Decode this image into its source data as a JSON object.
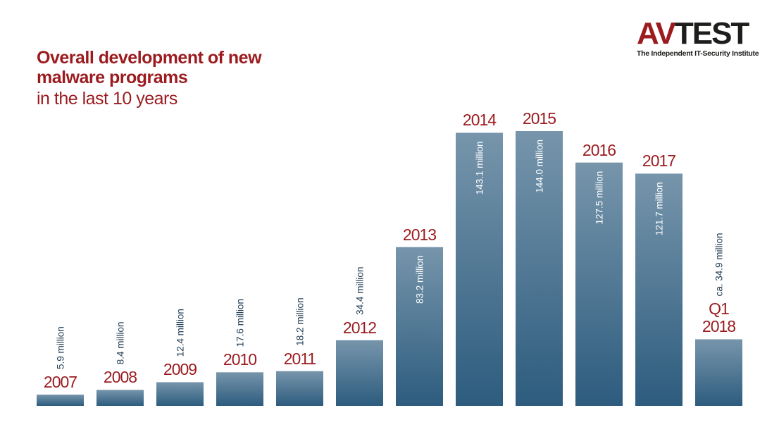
{
  "logo_left": "AV",
  "logo_right": "TEST",
  "logo_tagline": "The Independent IT-Security Institute",
  "chart_data": {
    "type": "bar",
    "title": "Overall development of new malware programs",
    "subtitle": "in the last 10 years",
    "categories": [
      "2007",
      "2008",
      "2009",
      "2010",
      "2011",
      "2012",
      "2013",
      "2014",
      "2015",
      "2016",
      "2017",
      "Q1 2018"
    ],
    "values": [
      5.9,
      8.4,
      12.4,
      17.6,
      18.2,
      34.4,
      83.2,
      143.1,
      144.0,
      127.5,
      121.7,
      34.9
    ],
    "value_labels": [
      "5.9 million",
      "8.4 million",
      "12.4 million",
      "17.6 million",
      "18.2 million",
      "34.4 million",
      "83.2 million",
      "143.1 million",
      "144.0 million",
      "127.5 million",
      "121.7 million",
      "ca. 34.9 million"
    ],
    "color": "#2d5c7e",
    "label_color": "#9b1b1f"
  }
}
